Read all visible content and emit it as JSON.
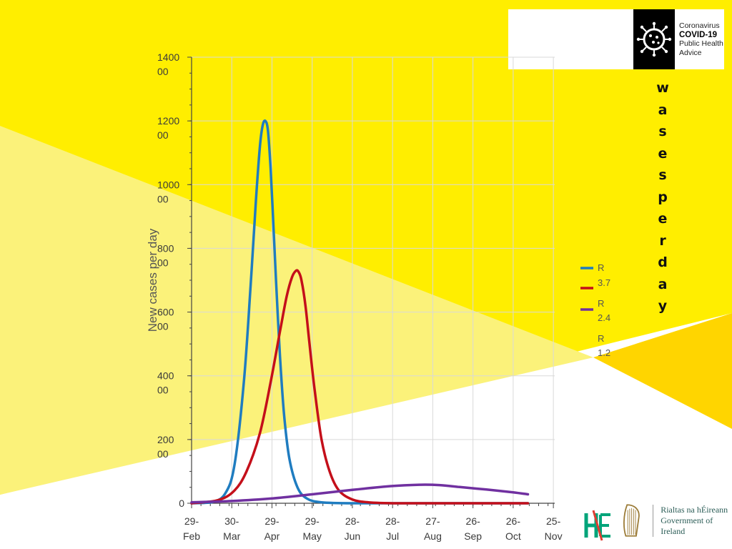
{
  "branding": {
    "covid_logo_lines": [
      "Coronavirus",
      "COVID-19",
      "Public Health",
      "Advice"
    ],
    "gov_lines": [
      "Rialtas na hÉireann",
      "Government of Ireland"
    ],
    "hse_icon": "hse-logo-icon",
    "harp_icon": "harp-emblem-icon",
    "virus_icon": "virus-icon"
  },
  "vertical_text": "wasesperday",
  "colors": {
    "background_yellow": "#ffee00",
    "pale_yellow": "#fbf27a",
    "amber": "#ffd500",
    "series": [
      "#1f7cc0",
      "#c40f1a",
      "#7030a0"
    ]
  },
  "chart_data": {
    "type": "line",
    "ylabel": "New cases per day",
    "ylim": [
      0,
      140000
    ],
    "y_ticks": [
      {
        "value": 0,
        "label": [
          "0"
        ]
      },
      {
        "value": 20000,
        "label": [
          "200",
          "00"
        ]
      },
      {
        "value": 40000,
        "label": [
          "400",
          "00"
        ]
      },
      {
        "value": 60000,
        "label": [
          "600",
          "00"
        ]
      },
      {
        "value": 80000,
        "label": [
          "800",
          "00"
        ]
      },
      {
        "value": 100000,
        "label": [
          "1000",
          "00"
        ]
      },
      {
        "value": 120000,
        "label": [
          "1200",
          "00"
        ]
      },
      {
        "value": 140000,
        "label": [
          "1400",
          "00"
        ]
      }
    ],
    "x_ticks": [
      {
        "date": "2020-02-29",
        "label": [
          "29-",
          "Feb"
        ]
      },
      {
        "date": "2020-03-30",
        "label": [
          "30-",
          "Mar"
        ]
      },
      {
        "date": "2020-04-29",
        "label": [
          "29-",
          "Apr"
        ]
      },
      {
        "date": "2020-05-29",
        "label": [
          "29-",
          "May"
        ]
      },
      {
        "date": "2020-06-28",
        "label": [
          "28-",
          "Jun"
        ]
      },
      {
        "date": "2020-07-28",
        "label": [
          "28-",
          "Jul"
        ]
      },
      {
        "date": "2020-08-27",
        "label": [
          "27-",
          "Aug"
        ]
      },
      {
        "date": "2020-09-26",
        "label": [
          "26-",
          "Sep"
        ]
      },
      {
        "date": "2020-10-26",
        "label": [
          "26-",
          "Oct"
        ]
      },
      {
        "date": "2020-11-25",
        "label": [
          "25-",
          "Nov"
        ]
      }
    ],
    "grid": true,
    "legend_position": "right",
    "series": [
      {
        "name": "R 3.7",
        "legend": [
          "R",
          "3.7"
        ],
        "color": "#1f7cc0",
        "x": [
          "2020-02-29",
          "2020-03-15",
          "2020-03-25",
          "2020-04-01",
          "2020-04-08",
          "2020-04-13",
          "2020-04-17",
          "2020-04-20",
          "2020-04-22",
          "2020-04-24",
          "2020-04-26",
          "2020-04-28",
          "2020-04-30",
          "2020-05-02",
          "2020-05-05",
          "2020-05-08",
          "2020-05-12",
          "2020-05-18",
          "2020-05-25",
          "2020-06-05",
          "2020-07-01",
          "2020-09-01",
          "2020-11-06"
        ],
        "y": [
          0,
          300,
          3000,
          12000,
          38000,
          68000,
          95000,
          112000,
          118500,
          120000,
          117000,
          105000,
          88000,
          70000,
          46000,
          28000,
          14000,
          5000,
          1500,
          300,
          0,
          0,
          0
        ]
      },
      {
        "name": "R 2.4",
        "legend": [
          "R",
          "2.4"
        ],
        "color": "#c40f1a",
        "x": [
          "2020-02-29",
          "2020-03-20",
          "2020-04-01",
          "2020-04-10",
          "2020-04-20",
          "2020-04-28",
          "2020-05-05",
          "2020-05-10",
          "2020-05-14",
          "2020-05-17",
          "2020-05-19",
          "2020-05-21",
          "2020-05-24",
          "2020-05-27",
          "2020-05-31",
          "2020-06-05",
          "2020-06-11",
          "2020-06-18",
          "2020-06-28",
          "2020-07-10",
          "2020-08-01",
          "2020-09-15",
          "2020-11-06"
        ],
        "y": [
          0,
          1000,
          4000,
          10000,
          22000,
          38000,
          54000,
          65000,
          71000,
          73000,
          72500,
          70000,
          62000,
          50000,
          35000,
          20000,
          10000,
          4000,
          1200,
          300,
          0,
          0,
          0
        ]
      },
      {
        "name": "R 1.2",
        "legend": [
          "R",
          "1.2"
        ],
        "color": "#7030a0",
        "x": [
          "2020-02-29",
          "2020-03-30",
          "2020-04-29",
          "2020-05-29",
          "2020-06-28",
          "2020-07-28",
          "2020-08-18",
          "2020-09-01",
          "2020-09-16",
          "2020-10-06",
          "2020-10-26",
          "2020-11-06"
        ],
        "y": [
          300,
          700,
          1500,
          2800,
          4200,
          5400,
          5800,
          5700,
          5100,
          4300,
          3400,
          2800
        ]
      }
    ]
  }
}
